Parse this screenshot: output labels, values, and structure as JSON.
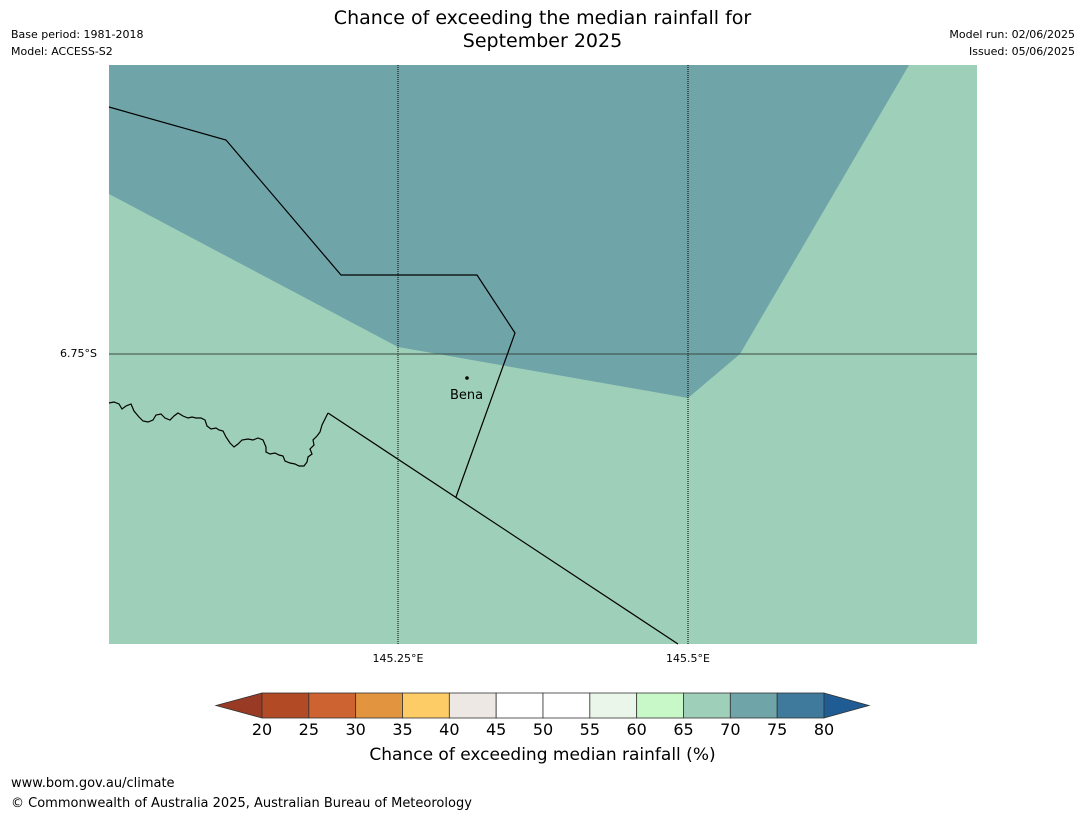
{
  "title": {
    "line1": "Chance of exceeding the median rainfall for",
    "line2": "September 2025"
  },
  "meta_left": {
    "base_period": "Base period: 1981-2018",
    "model": "Model: ACCESS-S2"
  },
  "meta_right": {
    "model_run": "Model run: 02/06/2025",
    "issued": "Issued: 05/06/2025"
  },
  "map": {
    "lat_label": "6.75°S",
    "lon_labels": [
      "145.25°E",
      "145.5°E"
    ],
    "place": "Bena",
    "region_colors": {
      "70_75": "#6fa4a8",
      "65_70": "#9ecfb9"
    }
  },
  "colorbar": {
    "label": "Chance of exceeding median rainfall (%)",
    "ticks": [
      "20",
      "25",
      "30",
      "35",
      "40",
      "45",
      "50",
      "55",
      "60",
      "65",
      "70",
      "75",
      "80"
    ],
    "under_color": "#993a24",
    "over_color": "#1f5c94",
    "colors": [
      "#b24a26",
      "#cc6330",
      "#e2943f",
      "#fdcc66",
      "#ede8e3",
      "#ffffff",
      "#ffffff",
      "#e9f6e9",
      "#c8f8c8",
      "#9ecfb9",
      "#6fa4a8",
      "#3f7a9c"
    ]
  },
  "footer": {
    "url": "www.bom.gov.au/climate",
    "copyright": "© Commonwealth of Australia 2025, Australian Bureau of Meteorology"
  }
}
